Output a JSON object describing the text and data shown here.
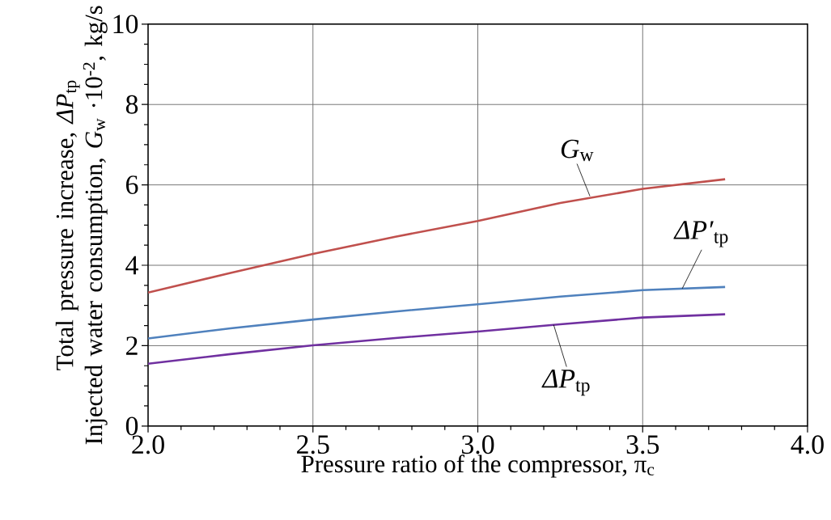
{
  "chart_data": {
    "type": "line",
    "xlabel": "Pressure ratio of the compressor,  π$_{c}$",
    "ylabel": "Total pressure increase, *ΔP*$_{tp}$ Injected water consumption, *G*$_{w}$ ·10$^{-2}$, kg/s",
    "x": [
      2.0,
      2.25,
      2.5,
      2.75,
      3.0,
      3.25,
      3.5,
      3.75
    ],
    "series": [
      {
        "color": "#c0504d",
        "values": [
          3.32,
          3.81,
          4.28,
          4.71,
          5.1,
          5.55,
          5.9,
          6.14
        ]
      },
      {
        "color": "#4f81bd",
        "values": [
          2.18,
          2.43,
          2.65,
          2.85,
          3.03,
          3.22,
          3.38,
          3.46
        ]
      },
      {
        "color": "#7030a0",
        "values": [
          1.55,
          1.79,
          2.01,
          2.19,
          2.35,
          2.53,
          2.7,
          2.78
        ]
      }
    ],
    "annotations": [
      {
        "text": "*G*$_{w}$",
        "x": 3.34,
        "y": 5.72
      },
      {
        "text": "*ΔP′*$_{tp}$",
        "x": 3.62,
        "y": 3.42
      },
      {
        "text": "*ΔP*$_{tp}$",
        "x": 3.23,
        "y": 2.52
      }
    ],
    "xlim": [
      2.0,
      4.0
    ],
    "ylim": [
      0,
      10
    ],
    "xticks": [
      {
        "value": 2.0,
        "label": "2.0"
      },
      {
        "value": 2.5,
        "label": "2.5"
      },
      {
        "value": 3.0,
        "label": "3.0"
      },
      {
        "value": 3.5,
        "label": "3.5"
      },
      {
        "value": 4.0,
        "label": "4.0"
      }
    ],
    "yticks": [
      0,
      2,
      4,
      6,
      8,
      10
    ],
    "grid": true,
    "marker": "none",
    "line_style": "solid"
  }
}
